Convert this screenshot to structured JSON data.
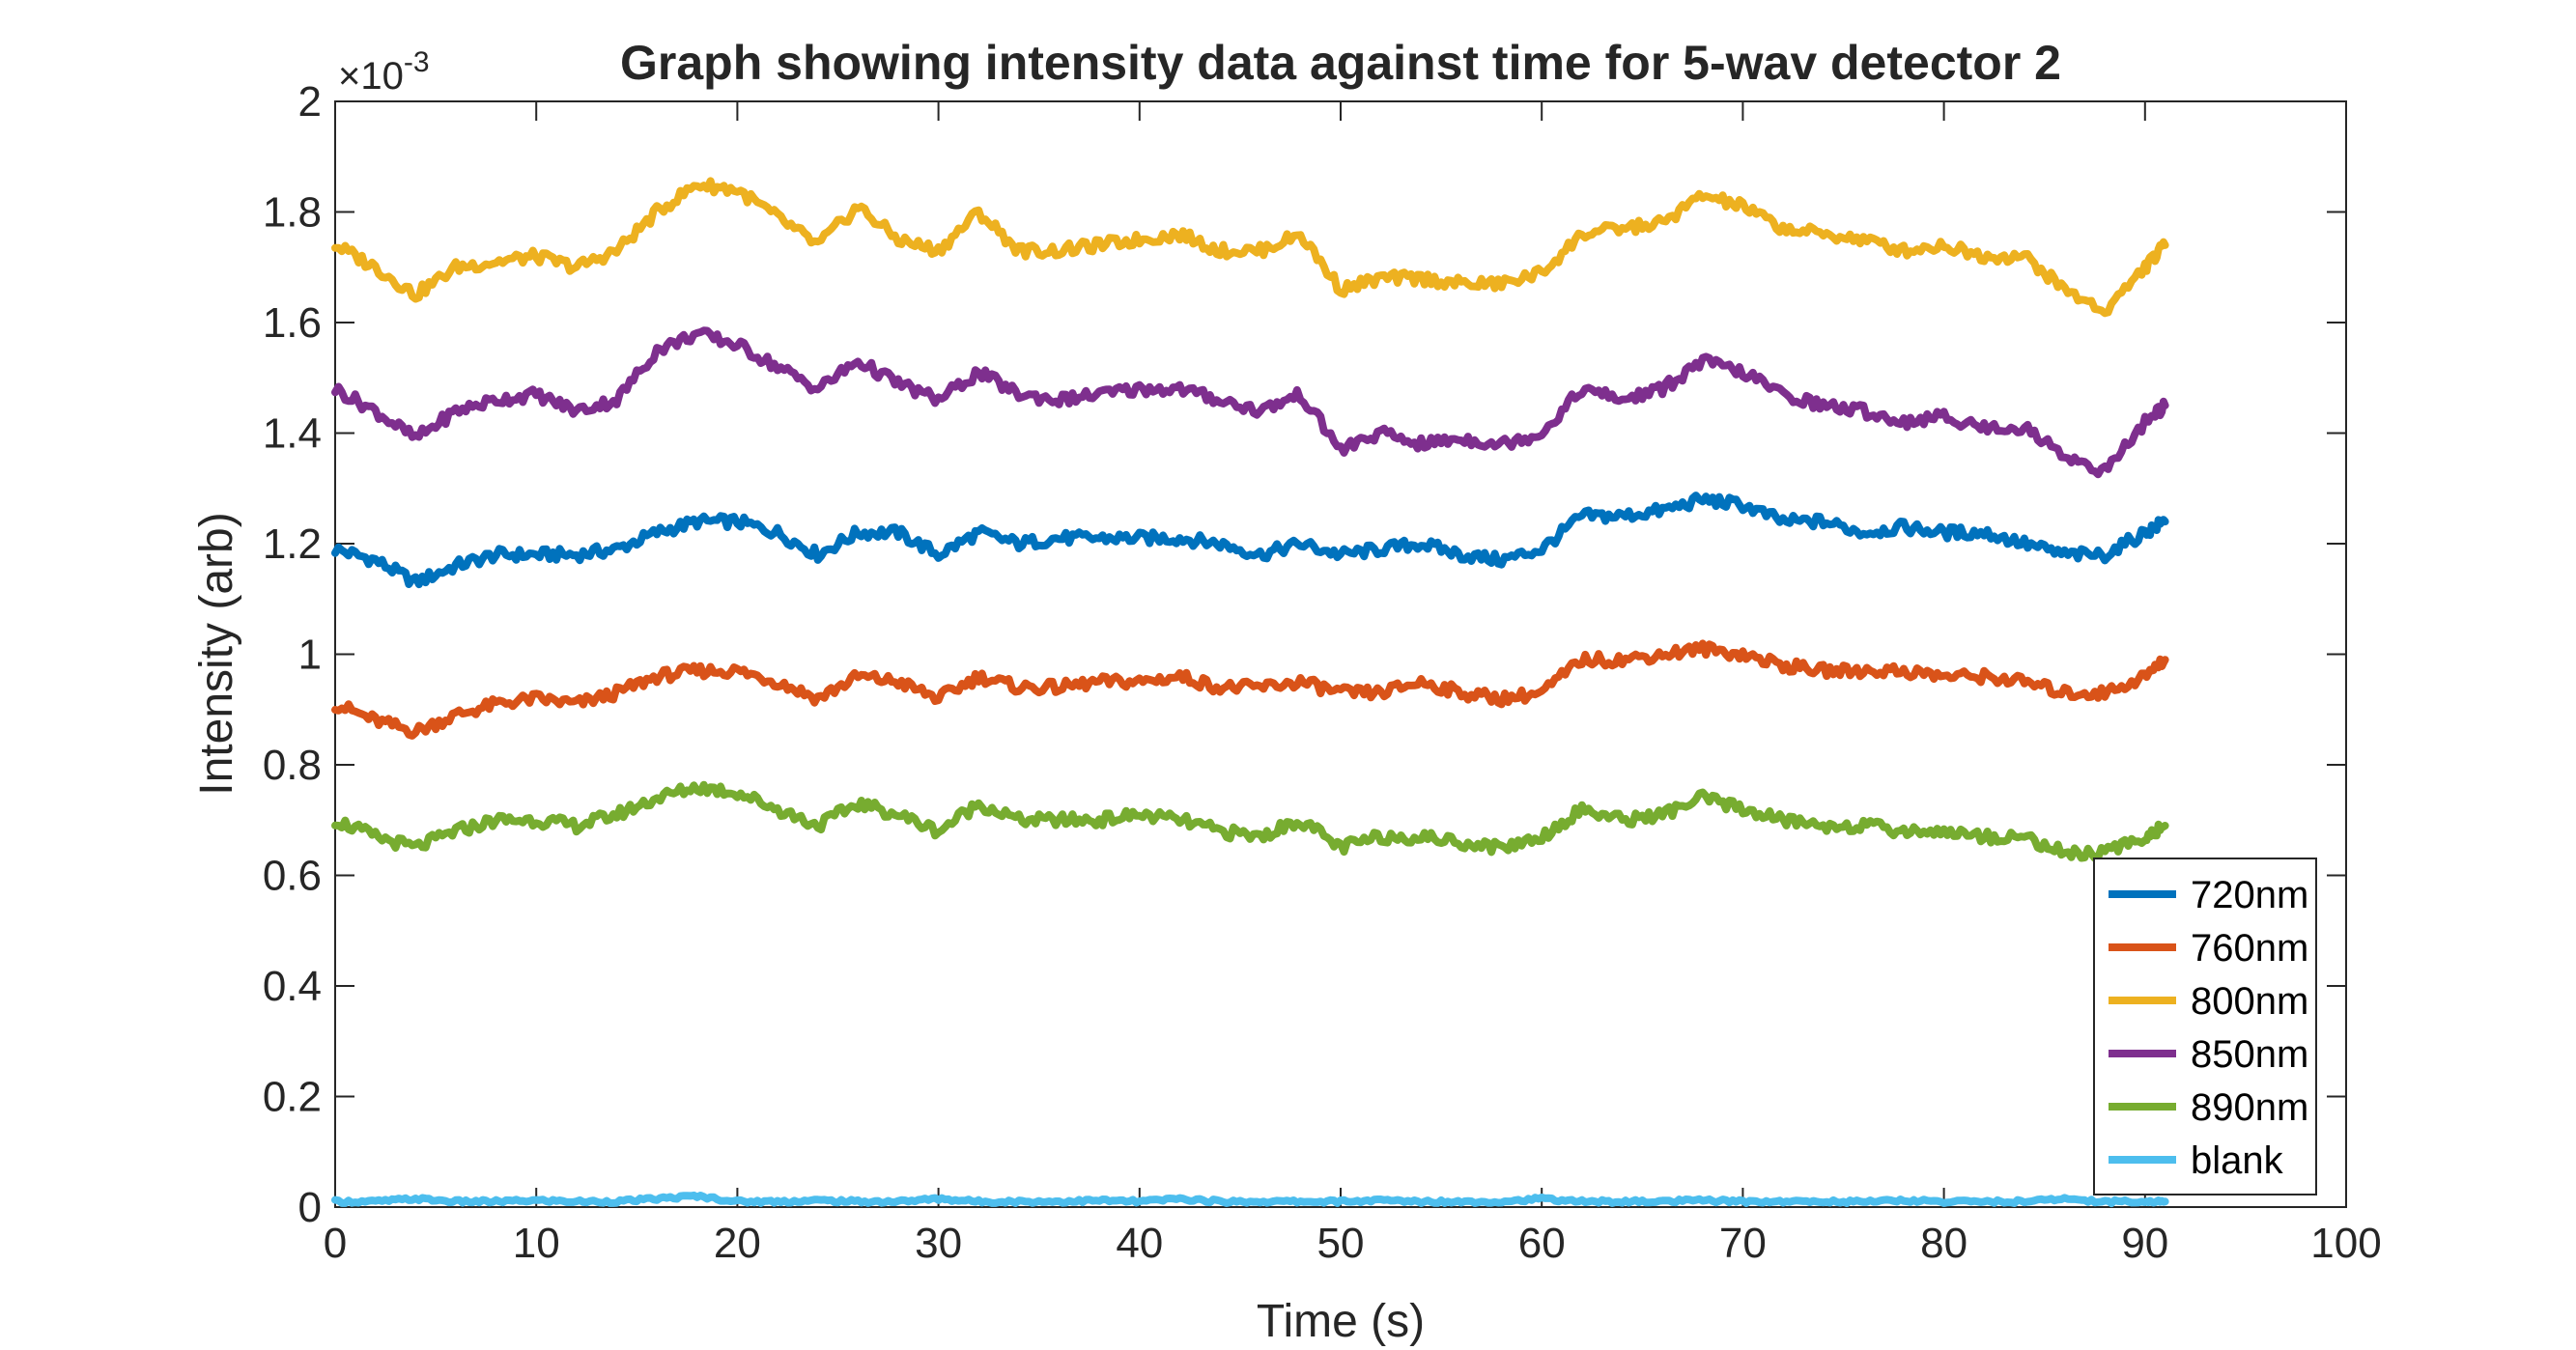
{
  "chart_data": {
    "type": "line",
    "title": "Graph showing intensity data against time for 5-wav detector 2",
    "xlabel": "Time (s)",
    "ylabel": "Intensity (arb)",
    "y_exponent_label": "×10",
    "y_exponent_power": "-3",
    "xlim": [
      0,
      100
    ],
    "ylim": [
      0,
      2
    ],
    "xticks": [
      0,
      10,
      20,
      30,
      40,
      50,
      60,
      70,
      80,
      90,
      100
    ],
    "yticks": [
      0,
      0.2,
      0.4,
      0.6,
      0.8,
      1,
      1.2,
      1.4,
      1.6,
      1.8,
      2
    ],
    "grid": false,
    "legend_position": "bottom-right",
    "x": [
      0,
      2,
      4,
      6,
      8,
      10,
      12,
      14,
      16,
      18,
      20,
      22,
      24,
      26,
      28,
      30,
      32,
      34,
      36,
      38,
      40,
      42,
      44,
      46,
      48,
      50,
      52,
      54,
      56,
      58,
      60,
      62,
      64,
      66,
      68,
      70,
      72,
      74,
      76,
      78,
      80,
      82,
      84,
      86,
      88,
      90,
      91
    ],
    "series": [
      {
        "name": "720nm",
        "color": "#0072BD",
        "values": [
          1.19,
          1.17,
          1.13,
          1.16,
          1.18,
          1.18,
          1.18,
          1.19,
          1.22,
          1.24,
          1.24,
          1.22,
          1.18,
          1.22,
          1.22,
          1.18,
          1.22,
          1.2,
          1.21,
          1.21,
          1.21,
          1.21,
          1.2,
          1.18,
          1.2,
          1.18,
          1.19,
          1.2,
          1.18,
          1.17,
          1.19,
          1.25,
          1.25,
          1.26,
          1.28,
          1.27,
          1.24,
          1.24,
          1.22,
          1.23,
          1.22,
          1.22,
          1.2,
          1.18,
          1.18,
          1.22,
          1.24
        ]
      },
      {
        "name": "760nm",
        "color": "#D95319",
        "values": [
          0.91,
          0.88,
          0.86,
          0.89,
          0.91,
          0.92,
          0.91,
          0.93,
          0.96,
          0.97,
          0.97,
          0.95,
          0.92,
          0.96,
          0.95,
          0.92,
          0.96,
          0.94,
          0.94,
          0.95,
          0.95,
          0.96,
          0.94,
          0.94,
          0.95,
          0.93,
          0.93,
          0.95,
          0.93,
          0.92,
          0.93,
          0.99,
          0.99,
          1.0,
          1.01,
          1.0,
          0.98,
          0.97,
          0.97,
          0.97,
          0.96,
          0.96,
          0.95,
          0.93,
          0.93,
          0.96,
          0.99
        ]
      },
      {
        "name": "800nm",
        "color": "#EDB120",
        "values": [
          1.74,
          1.7,
          1.65,
          1.7,
          1.71,
          1.72,
          1.7,
          1.73,
          1.8,
          1.85,
          1.84,
          1.79,
          1.74,
          1.81,
          1.75,
          1.73,
          1.8,
          1.73,
          1.73,
          1.74,
          1.75,
          1.76,
          1.73,
          1.73,
          1.76,
          1.66,
          1.68,
          1.68,
          1.67,
          1.67,
          1.69,
          1.76,
          1.77,
          1.78,
          1.83,
          1.81,
          1.77,
          1.76,
          1.75,
          1.73,
          1.74,
          1.72,
          1.72,
          1.66,
          1.62,
          1.7,
          1.74
        ]
      },
      {
        "name": "850nm",
        "color": "#7E2F8E",
        "values": [
          1.48,
          1.44,
          1.39,
          1.44,
          1.46,
          1.47,
          1.44,
          1.46,
          1.55,
          1.58,
          1.56,
          1.52,
          1.48,
          1.53,
          1.49,
          1.46,
          1.51,
          1.47,
          1.46,
          1.47,
          1.48,
          1.48,
          1.46,
          1.44,
          1.47,
          1.37,
          1.4,
          1.38,
          1.39,
          1.38,
          1.4,
          1.48,
          1.46,
          1.48,
          1.53,
          1.51,
          1.47,
          1.45,
          1.44,
          1.42,
          1.43,
          1.41,
          1.41,
          1.36,
          1.33,
          1.42,
          1.45
        ]
      },
      {
        "name": "890nm",
        "color": "#77AC30",
        "values": [
          0.7,
          0.67,
          0.65,
          0.68,
          0.7,
          0.7,
          0.69,
          0.71,
          0.74,
          0.76,
          0.75,
          0.72,
          0.69,
          0.73,
          0.71,
          0.68,
          0.73,
          0.7,
          0.7,
          0.7,
          0.71,
          0.7,
          0.68,
          0.67,
          0.7,
          0.65,
          0.67,
          0.67,
          0.66,
          0.65,
          0.67,
          0.72,
          0.7,
          0.71,
          0.74,
          0.72,
          0.7,
          0.69,
          0.69,
          0.68,
          0.68,
          0.67,
          0.67,
          0.64,
          0.64,
          0.67,
          0.69
        ]
      },
      {
        "name": "blank",
        "color": "#4DBEEE",
        "values": [
          0.01,
          0.01,
          0.015,
          0.01,
          0.01,
          0.012,
          0.01,
          0.01,
          0.015,
          0.02,
          0.01,
          0.01,
          0.012,
          0.01,
          0.01,
          0.015,
          0.01,
          0.01,
          0.01,
          0.012,
          0.01,
          0.015,
          0.01,
          0.01,
          0.01,
          0.01,
          0.012,
          0.01,
          0.01,
          0.01,
          0.015,
          0.01,
          0.01,
          0.01,
          0.012,
          0.01,
          0.01,
          0.01,
          0.01,
          0.012,
          0.01,
          0.01,
          0.01,
          0.015,
          0.01,
          0.01,
          0.01
        ]
      }
    ]
  }
}
